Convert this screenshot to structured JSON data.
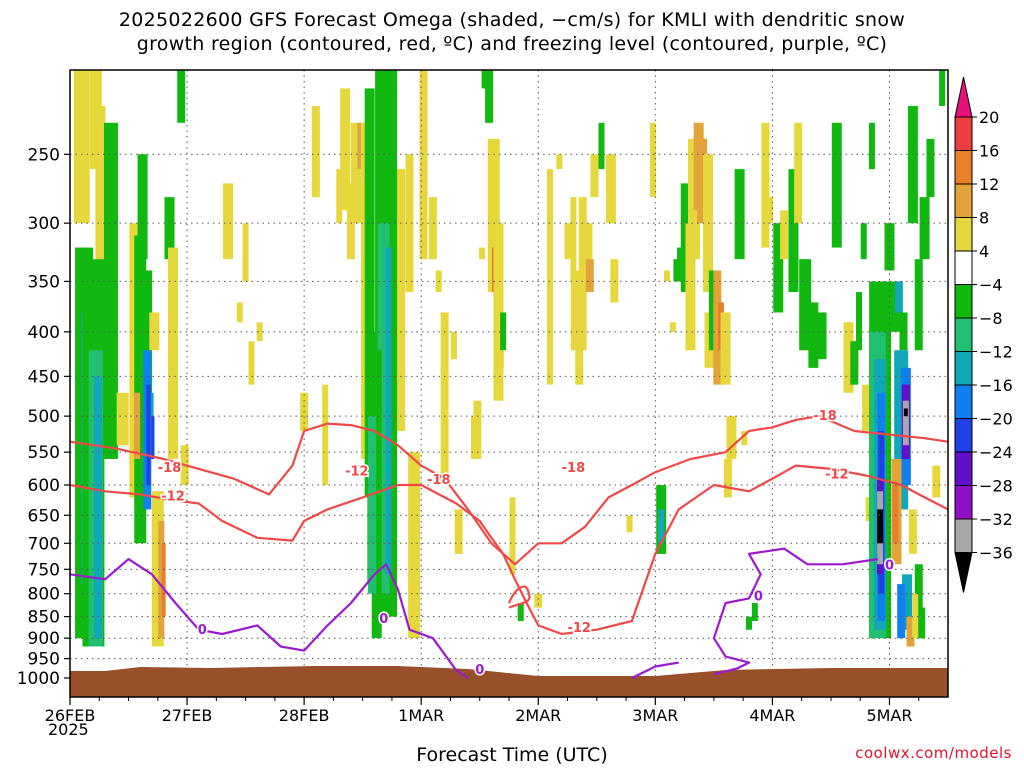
{
  "title": {
    "line1": "2025022600 GFS Forecast Omega (shaded, −cm/s) for KMLI with dendritic snow",
    "line2": "growth region (contoured, red, ºC) and freezing level (contoured, purple, ºC)"
  },
  "footer": {
    "xlabel": "Forecast Time (UTC)",
    "year": "2025",
    "watermark": "coolwx.com/models"
  },
  "colors": {
    "ground": "#98502a",
    "dgz_contour": "#f04848",
    "freezing_contour": "#9a1ad0",
    "grid": "#555555"
  },
  "chart_data": {
    "type": "heatmap",
    "title": "2025022600 GFS Forecast Omega (shaded, −cm/s) for KMLI with dendritic snow growth region (contoured, red, ºC) and freezing level (contoured, purple, ºC)",
    "xlabel": "Forecast Time (UTC)",
    "ylabel": "",
    "x_ticks": [
      "26FEB",
      "27FEB",
      "28FEB",
      "1MAR",
      "2MAR",
      "3MAR",
      "4MAR",
      "5MAR"
    ],
    "x_range_days": [
      0,
      7.5
    ],
    "y_ticks": [
      250,
      300,
      350,
      400,
      450,
      500,
      550,
      600,
      650,
      700,
      750,
      800,
      850,
      900,
      950,
      1000
    ],
    "y_range_hpa": [
      200,
      1000
    ],
    "y_scale": "log",
    "grid": true,
    "colorbar": {
      "labels": [
        "20",
        "16",
        "12",
        "8",
        "4",
        "−4",
        "−8",
        "−12",
        "−16",
        "−20",
        "−24",
        "−28",
        "−32",
        "−36"
      ],
      "bins": [
        {
          "range": ">20",
          "color": "#e8107a"
        },
        {
          "range": "16-20",
          "color": "#ee3d3d"
        },
        {
          "range": "12-16",
          "color": "#e8802a"
        },
        {
          "range": "8-12",
          "color": "#e2a43a"
        },
        {
          "range": "4-8",
          "color": "#e6d83c"
        },
        {
          "range": "-4-4",
          "color": "#ffffff"
        },
        {
          "range": "-8--4",
          "color": "#10b810"
        },
        {
          "range": "-12--8",
          "color": "#20c070"
        },
        {
          "range": "-16--12",
          "color": "#10a8b8"
        },
        {
          "range": "-20--16",
          "color": "#1080f0"
        },
        {
          "range": "-24--20",
          "color": "#2040e8"
        },
        {
          "range": "-28--24",
          "color": "#6010c8"
        },
        {
          "range": "-32--28",
          "color": "#9010c8"
        },
        {
          "range": "-36--32",
          "color": "#a8a8a8"
        },
        {
          "range": "<-36",
          "color": "#000000"
        }
      ]
    },
    "contour_labels": {
      "dgz": [
        "-18",
        "-12",
        "-12",
        "-18",
        "-18",
        "-12",
        "-18",
        "-12"
      ],
      "freezing": [
        "0",
        "0",
        "0",
        "0",
        "0"
      ]
    },
    "series": [
      {
        "name": "-12",
        "color": "#f04848",
        "points": [
          [
            0,
            600
          ],
          [
            0.3,
            610
          ],
          [
            0.6,
            615
          ],
          [
            0.9,
            625
          ],
          [
            1.1,
            630
          ],
          [
            1.3,
            660
          ],
          [
            1.6,
            690
          ],
          [
            1.9,
            695
          ],
          [
            2.0,
            660
          ],
          [
            2.2,
            640
          ],
          [
            2.5,
            620
          ],
          [
            2.8,
            600
          ],
          [
            3.0,
            600
          ],
          [
            3.3,
            630
          ],
          [
            3.5,
            660
          ],
          [
            3.6,
            690
          ],
          [
            3.7,
            720
          ],
          [
            3.8,
            770
          ],
          [
            3.9,
            820
          ],
          [
            4.0,
            870
          ],
          [
            4.2,
            890
          ],
          [
            4.5,
            880
          ],
          [
            4.8,
            860
          ],
          [
            5.0,
            720
          ],
          [
            5.2,
            640
          ],
          [
            5.5,
            600
          ],
          [
            5.8,
            610
          ],
          [
            6.0,
            590
          ],
          [
            6.2,
            570
          ],
          [
            6.5,
            575
          ],
          [
            6.8,
            585
          ],
          [
            7.1,
            600
          ],
          [
            7.3,
            620
          ],
          [
            7.5,
            640
          ]
        ]
      },
      {
        "name": "-18",
        "color": "#f04848",
        "points": [
          [
            0,
            535
          ],
          [
            0.4,
            545
          ],
          [
            0.8,
            560
          ],
          [
            1.1,
            575
          ],
          [
            1.4,
            590
          ],
          [
            1.7,
            615
          ],
          [
            1.9,
            570
          ],
          [
            2.0,
            520
          ],
          [
            2.2,
            510
          ],
          [
            2.4,
            512
          ],
          [
            2.6,
            520
          ],
          [
            2.8,
            540
          ],
          [
            3.0,
            570
          ],
          [
            3.2,
            590
          ],
          [
            3.4,
            640
          ],
          [
            3.6,
            700
          ],
          [
            3.8,
            740
          ],
          [
            4.0,
            700
          ],
          [
            4.2,
            700
          ],
          [
            4.4,
            670
          ],
          [
            4.6,
            620
          ],
          [
            4.8,
            600
          ],
          [
            5.0,
            580
          ],
          [
            5.3,
            560
          ],
          [
            5.6,
            550
          ],
          [
            5.8,
            520
          ],
          [
            6.0,
            515
          ],
          [
            6.2,
            505
          ],
          [
            6.4,
            500
          ],
          [
            6.7,
            520
          ],
          [
            7.0,
            525
          ],
          [
            7.3,
            530
          ],
          [
            7.5,
            535
          ]
        ]
      },
      {
        "name": "0",
        "color": "#9a1ad0",
        "points": [
          [
            0,
            760
          ],
          [
            0.3,
            770
          ],
          [
            0.5,
            730
          ],
          [
            0.7,
            760
          ],
          [
            0.9,
            820
          ],
          [
            1.1,
            880
          ],
          [
            1.3,
            890
          ],
          [
            1.6,
            870
          ],
          [
            1.8,
            920
          ],
          [
            2.0,
            930
          ],
          [
            2.2,
            870
          ],
          [
            2.4,
            820
          ],
          [
            2.6,
            760
          ],
          [
            2.7,
            740
          ],
          [
            2.8,
            790
          ],
          [
            2.9,
            880
          ],
          [
            3.1,
            900
          ],
          [
            3.3,
            980
          ],
          [
            3.4,
            1000
          ]
        ]
      },
      {
        "name": "0",
        "color": "#9a1ad0",
        "points": [
          [
            4.8,
            1000
          ],
          [
            5.0,
            970
          ],
          [
            5.1,
            965
          ],
          [
            5.2,
            960
          ]
        ]
      },
      {
        "name": "0",
        "color": "#9a1ad0",
        "points": [
          [
            5.5,
            990
          ],
          [
            5.7,
            975
          ],
          [
            5.8,
            960
          ],
          [
            5.6,
            945
          ],
          [
            5.5,
            900
          ],
          [
            5.6,
            820
          ],
          [
            5.8,
            810
          ],
          [
            5.9,
            760
          ],
          [
            5.8,
            720
          ],
          [
            6.1,
            710
          ],
          [
            6.3,
            740
          ],
          [
            6.6,
            740
          ],
          [
            6.9,
            730
          ]
        ]
      }
    ]
  }
}
